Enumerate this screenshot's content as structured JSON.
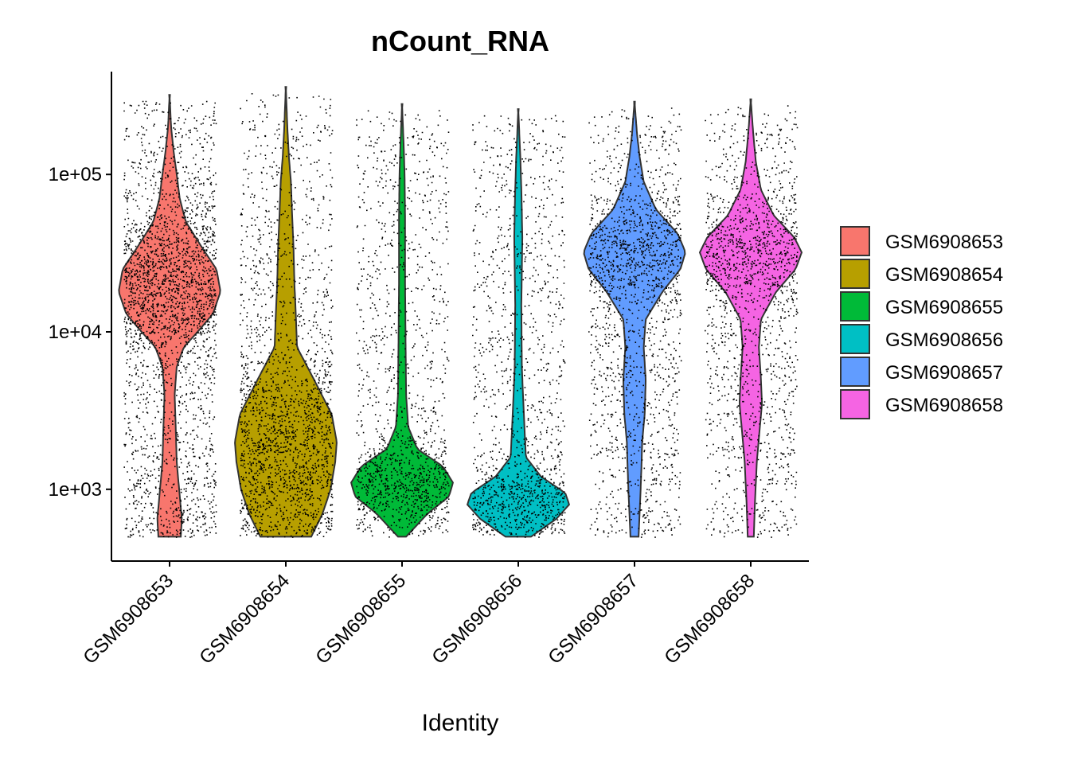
{
  "chart_data": {
    "type": "violin",
    "title": "nCount_RNA",
    "xlabel": "Identity",
    "ylabel": "",
    "y_scale": "log10",
    "ylim": [
      350,
      450000
    ],
    "y_ticks": [
      {
        "value": 1000,
        "label": "1e+03"
      },
      {
        "value": 10000,
        "label": "1e+04"
      },
      {
        "value": 100000,
        "label": "1e+05"
      }
    ],
    "categories": [
      "GSM6908653",
      "GSM6908654",
      "GSM6908655",
      "GSM6908656",
      "GSM6908657",
      "GSM6908658"
    ],
    "colors": [
      "#F8766D",
      "#B79F00",
      "#00BA38",
      "#00BFC4",
      "#619CFF",
      "#F564E3"
    ],
    "series": [
      {
        "name": "GSM6908653",
        "min": 500,
        "max": 320000,
        "density": [
          [
            500,
            0.22
          ],
          [
            650,
            0.24
          ],
          [
            900,
            0.2
          ],
          [
            1500,
            0.14
          ],
          [
            2500,
            0.12
          ],
          [
            4000,
            0.1
          ],
          [
            6000,
            0.14
          ],
          [
            8000,
            0.28
          ],
          [
            10000,
            0.55
          ],
          [
            13000,
            0.85
          ],
          [
            18000,
            1.0
          ],
          [
            25000,
            0.92
          ],
          [
            35000,
            0.62
          ],
          [
            50000,
            0.32
          ],
          [
            70000,
            0.2
          ],
          [
            100000,
            0.14
          ],
          [
            140000,
            0.08
          ],
          [
            200000,
            0.03
          ],
          [
            320000,
            0.0
          ]
        ]
      },
      {
        "name": "GSM6908654",
        "min": 500,
        "max": 360000,
        "density": [
          [
            500,
            0.5
          ],
          [
            700,
            0.72
          ],
          [
            1000,
            0.88
          ],
          [
            1500,
            0.97
          ],
          [
            2000,
            1.0
          ],
          [
            3000,
            0.9
          ],
          [
            5000,
            0.55
          ],
          [
            8000,
            0.22
          ],
          [
            12000,
            0.2
          ],
          [
            20000,
            0.17
          ],
          [
            35000,
            0.15
          ],
          [
            60000,
            0.12
          ],
          [
            90000,
            0.1
          ],
          [
            130000,
            0.06
          ],
          [
            200000,
            0.03
          ],
          [
            360000,
            0.0
          ]
        ]
      },
      {
        "name": "GSM6908655",
        "min": 500,
        "max": 280000,
        "density": [
          [
            500,
            0.08
          ],
          [
            700,
            0.5
          ],
          [
            900,
            0.92
          ],
          [
            1100,
            1.0
          ],
          [
            1400,
            0.8
          ],
          [
            1800,
            0.3
          ],
          [
            2500,
            0.12
          ],
          [
            4000,
            0.08
          ],
          [
            8000,
            0.07
          ],
          [
            20000,
            0.06
          ],
          [
            50000,
            0.06
          ],
          [
            100000,
            0.05
          ],
          [
            160000,
            0.03
          ],
          [
            280000,
            0.0
          ]
        ]
      },
      {
        "name": "GSM6908656",
        "min": 500,
        "max": 260000,
        "density": [
          [
            500,
            0.25
          ],
          [
            650,
            0.75
          ],
          [
            800,
            1.0
          ],
          [
            950,
            0.92
          ],
          [
            1200,
            0.45
          ],
          [
            1600,
            0.15
          ],
          [
            2500,
            0.12
          ],
          [
            3500,
            0.1
          ],
          [
            6000,
            0.07
          ],
          [
            15000,
            0.06
          ],
          [
            40000,
            0.08
          ],
          [
            80000,
            0.06
          ],
          [
            130000,
            0.04
          ],
          [
            260000,
            0.0
          ]
        ]
      },
      {
        "name": "GSM6908657",
        "min": 500,
        "max": 290000,
        "density": [
          [
            500,
            0.08
          ],
          [
            700,
            0.1
          ],
          [
            1000,
            0.12
          ],
          [
            1500,
            0.14
          ],
          [
            2000,
            0.15
          ],
          [
            3000,
            0.2
          ],
          [
            5000,
            0.22
          ],
          [
            8000,
            0.18
          ],
          [
            12000,
            0.22
          ],
          [
            18000,
            0.55
          ],
          [
            25000,
            0.9
          ],
          [
            32000,
            1.0
          ],
          [
            42000,
            0.85
          ],
          [
            60000,
            0.42
          ],
          [
            90000,
            0.18
          ],
          [
            130000,
            0.1
          ],
          [
            180000,
            0.05
          ],
          [
            290000,
            0.0
          ]
        ]
      },
      {
        "name": "GSM6908658",
        "min": 500,
        "max": 300000,
        "density": [
          [
            500,
            0.06
          ],
          [
            800,
            0.08
          ],
          [
            1500,
            0.12
          ],
          [
            2500,
            0.18
          ],
          [
            3500,
            0.22
          ],
          [
            5000,
            0.2
          ],
          [
            8000,
            0.16
          ],
          [
            12000,
            0.2
          ],
          [
            18000,
            0.5
          ],
          [
            25000,
            0.88
          ],
          [
            32000,
            1.0
          ],
          [
            40000,
            0.85
          ],
          [
            55000,
            0.45
          ],
          [
            80000,
            0.2
          ],
          [
            120000,
            0.1
          ],
          [
            180000,
            0.05
          ],
          [
            300000,
            0.0
          ]
        ]
      }
    ],
    "points": "jittered individual cells overlaid in black",
    "legend": "right",
    "grid": false
  }
}
